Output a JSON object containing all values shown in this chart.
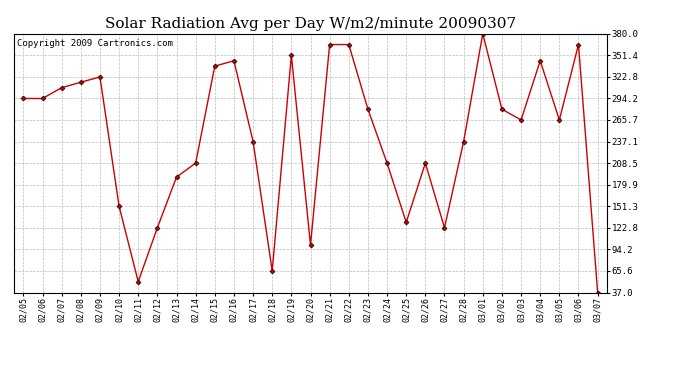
{
  "title": "Solar Radiation Avg per Day W/m2/minute 20090307",
  "copyright": "Copyright 2009 Cartronics.com",
  "dates": [
    "02/05",
    "02/06",
    "02/07",
    "02/08",
    "02/09",
    "02/10",
    "02/11",
    "02/12",
    "02/13",
    "02/14",
    "02/15",
    "02/16",
    "02/17",
    "02/18",
    "02/19",
    "02/20",
    "02/21",
    "02/22",
    "02/23",
    "02/24",
    "02/25",
    "02/26",
    "02/27",
    "02/28",
    "03/01",
    "03/02",
    "03/03",
    "03/04",
    "03/05",
    "03/06",
    "03/07"
  ],
  "values": [
    294.2,
    294.2,
    308.5,
    315.7,
    322.8,
    151.3,
    51.4,
    122.8,
    190.0,
    208.5,
    337.1,
    344.2,
    237.1,
    65.6,
    351.4,
    100.0,
    365.7,
    365.7,
    280.0,
    208.5,
    130.0,
    208.5,
    122.8,
    237.1,
    380.0,
    280.0,
    265.7,
    344.2,
    265.7,
    365.7,
    37.0
  ],
  "ylim": [
    37.0,
    380.0
  ],
  "yticks": [
    37.0,
    65.6,
    94.2,
    122.8,
    151.3,
    179.9,
    208.5,
    237.1,
    265.7,
    294.2,
    322.8,
    351.4,
    380.0
  ],
  "line_color": "#cc0000",
  "marker": "D",
  "marker_size": 2.5,
  "marker_color": "#cc0000",
  "bg_color": "#ffffff",
  "plot_bg_color": "#ffffff",
  "grid_color": "#bbbbbb",
  "title_fontsize": 11,
  "copyright_fontsize": 6.5
}
